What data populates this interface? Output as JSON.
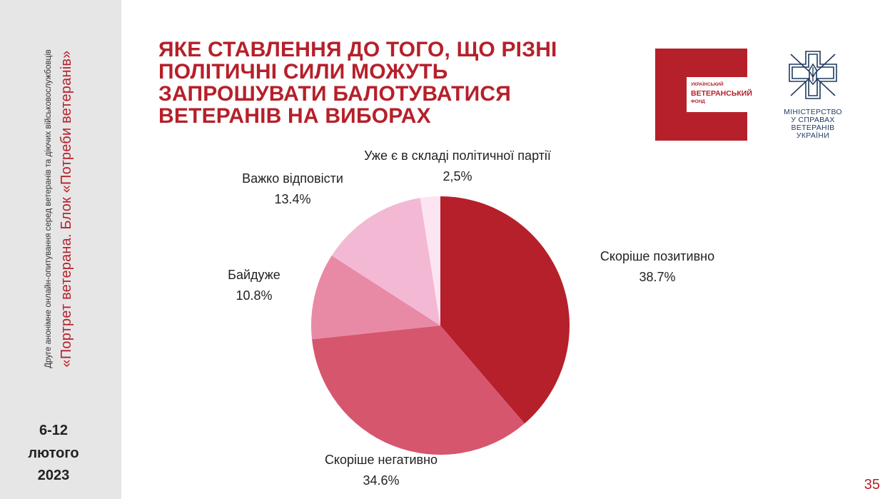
{
  "sidebar": {
    "subtitle": "Друге анонімне онлайн-опитування серед ветеранів та діючих військовослужбовців",
    "main_title": "«Портрет ветерана. Блок «Потреби ветеранів»",
    "date_line1": "6-12",
    "date_line2": "лютого",
    "date_line3": "2023"
  },
  "logos": {
    "fund_top": "УКРАЇНСЬКИЙ",
    "fund_main": "ВЕТЕРАНСЬКИЙ",
    "fund_bottom": "ФОНД",
    "ministry_lines": [
      "МІНІСТЕРСТВО",
      "У СПРАВАХ",
      "ВЕТЕРАНІВ",
      "УКРАЇНИ"
    ]
  },
  "page_number": "35",
  "colors": {
    "brand_red": "#b6202a",
    "sidebar_bg": "#e6e6e6"
  },
  "chart_data": {
    "type": "pie",
    "title": "ЯКЕ СТАВЛЕННЯ ДО ТОГО, ЩО РІЗНІ ПОЛІТИЧНІ СИЛИ МОЖУТЬ ЗАПРОШУВАТИ БАЛОТУВАТИСЯ ВЕТЕРАНІВ НА ВИБОРАХ",
    "start": "12 o'clock, clockwise",
    "slices": [
      {
        "label": "Скоріше позитивно",
        "value": 38.7,
        "value_text": "38.7%",
        "color": "#b6202a"
      },
      {
        "label": "Скоріше негативно",
        "value": 34.6,
        "value_text": "34.6%",
        "color": "#d6566e"
      },
      {
        "label": "Байдуже",
        "value": 10.8,
        "value_text": "10.8%",
        "color": "#e88aa5"
      },
      {
        "label": "Важко відповісти",
        "value": 13.4,
        "value_text": "13.4%",
        "color": "#f2b8d4"
      },
      {
        "label": "Уже є в складі політичної партії",
        "value": 2.5,
        "value_text": "2,5%",
        "color": "#fde4f1"
      }
    ]
  }
}
